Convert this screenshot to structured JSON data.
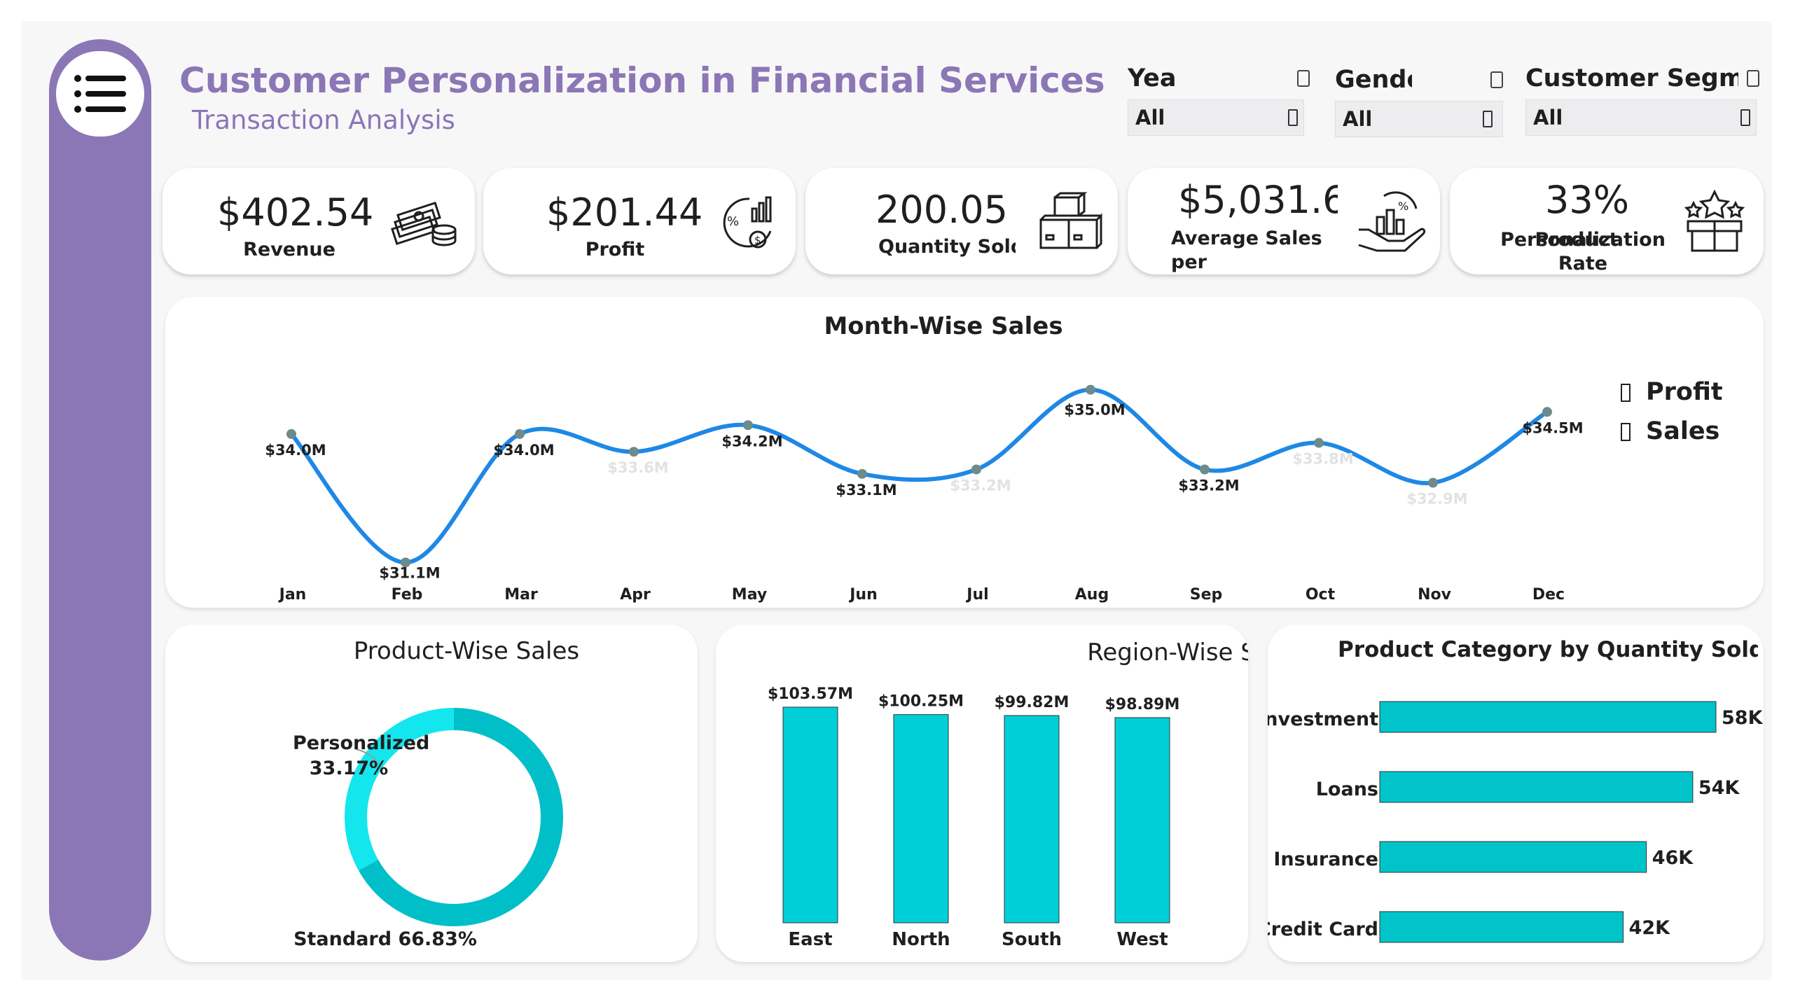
{
  "header": {
    "title": "Customer Personalization in Financial Services",
    "subtitle": "Transaction Analysis"
  },
  "filters": [
    {
      "label": "Yea",
      "value": "All"
    },
    {
      "label": "Gende",
      "value": "All"
    },
    {
      "label": "Customer Segm",
      "value": "All"
    }
  ],
  "kpis": [
    {
      "value": "$402.54M",
      "label": "Revenue",
      "icon": "money-stack-icon"
    },
    {
      "value": "$201.44M",
      "label": "Profit",
      "icon": "profit-chart-icon"
    },
    {
      "value": "200.05K",
      "label": "Quantity Sold",
      "icon": "boxes-icon"
    },
    {
      "value": "$5,031.6",
      "label": "Average Sales per",
      "icon": "hand-chart-icon"
    },
    {
      "value": "33%",
      "label": "Personalization Rate",
      "overlap_label": "Product",
      "icon": "gift-box-icon"
    }
  ],
  "chart_data": [
    {
      "type": "line",
      "title": "Month-Wise Sales",
      "categories": [
        "Jan",
        "Feb",
        "Mar",
        "Apr",
        "May",
        "Jun",
        "Jul",
        "Aug",
        "Sep",
        "Oct",
        "Nov",
        "Dec"
      ],
      "series": [
        {
          "name": "Sales",
          "values": [
            34.0,
            31.1,
            34.0,
            33.6,
            34.2,
            33.1,
            33.2,
            35.0,
            33.2,
            33.8,
            32.9,
            34.5
          ]
        }
      ],
      "data_labels": [
        "$34.0M",
        "$31.1M",
        "$34.0M",
        "$33.6M",
        "$34.2M",
        "$33.1M",
        "$33.2M",
        "$35.0M",
        "$33.2M",
        "$33.8M",
        "$32.9M",
        "$34.5M"
      ],
      "legend": [
        "Profit",
        "Sales"
      ],
      "legend_position": "right",
      "ylim": [
        30.9,
        35.2
      ],
      "color": "#1e88e5"
    },
    {
      "type": "pie",
      "title": "Product-Wise Sales",
      "categories": [
        "Standard",
        "Personalized"
      ],
      "values": [
        66.83,
        33.17
      ],
      "labels": [
        "Standard 66.83%",
        "Personalized",
        "33.17%"
      ],
      "colors": [
        "#00bfc8",
        "#14e6ee"
      ]
    },
    {
      "type": "bar",
      "title": "Region-Wise Sales",
      "categories": [
        "East",
        "North",
        "South",
        "West"
      ],
      "values": [
        103.57,
        100.25,
        99.82,
        98.89
      ],
      "data_labels": [
        "$103.57M",
        "$100.25M",
        "$99.82M",
        "$98.89M"
      ],
      "ylim": [
        0,
        103.57
      ],
      "color": "#00cfd8"
    },
    {
      "type": "bar",
      "orientation": "horizontal",
      "title": "Product Category by Quantity Sold",
      "categories": [
        "Investment",
        "Loans",
        "Insurance",
        "Credit Card"
      ],
      "values": [
        58,
        54,
        46,
        42
      ],
      "data_labels": [
        "58K",
        "54K",
        "46K",
        "42K"
      ],
      "xlim": [
        0,
        58
      ],
      "color": "#00c4ca"
    }
  ]
}
